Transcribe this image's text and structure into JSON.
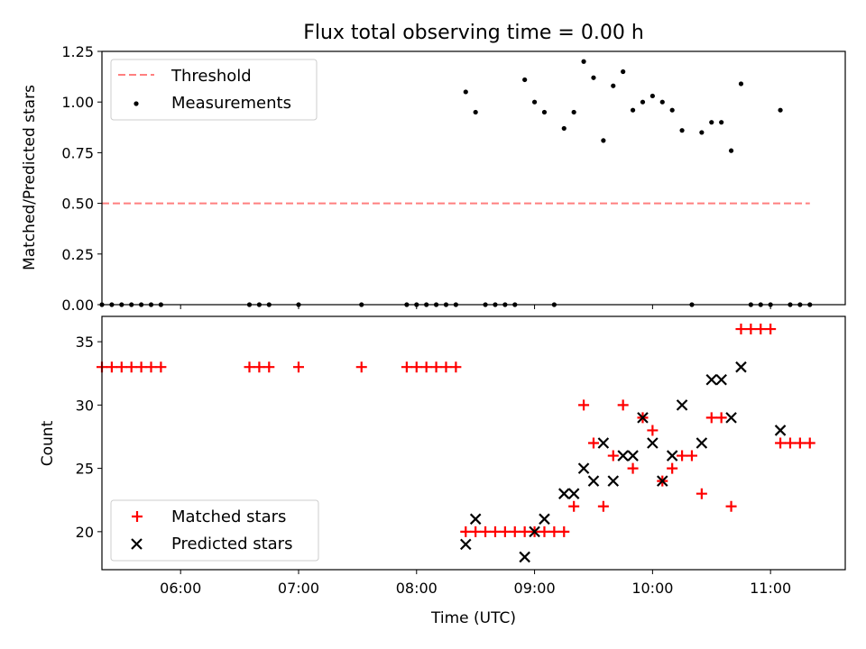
{
  "chart_data": [
    {
      "type": "scatter",
      "title": "Flux total observing time = 0.00 h",
      "xlabel": "",
      "ylabel": "Matched/Predicted stars",
      "ylim": [
        0,
        1.25
      ],
      "yticks": [
        "0.00",
        "0.25",
        "0.50",
        "0.75",
        "1.00",
        "1.25"
      ],
      "xticks": [
        "06:00",
        "07:00",
        "08:00",
        "09:00",
        "10:00",
        "11:00"
      ],
      "xlim": [
        "05:20",
        "11:38"
      ],
      "legend_position": "top-left",
      "legend": [
        "Threshold",
        "Measurements"
      ],
      "colors": {
        "threshold": "#ff7f7f",
        "measurements": "#000000"
      },
      "threshold": {
        "name": "Threshold",
        "y": 0.5,
        "x_from": "05:20",
        "x_to": "11:20"
      },
      "series": [
        {
          "name": "Measurements",
          "x": [
            "05:20",
            "05:25",
            "05:30",
            "05:35",
            "05:40",
            "05:45",
            "05:50",
            "06:35",
            "06:40",
            "06:45",
            "07:00",
            "07:32",
            "07:55",
            "08:00",
            "08:05",
            "08:10",
            "08:15",
            "08:20",
            "08:25",
            "08:30",
            "08:35",
            "08:40",
            "08:45",
            "08:50",
            "08:55",
            "09:00",
            "09:05",
            "09:10",
            "09:15",
            "09:20",
            "09:25",
            "09:30",
            "09:35",
            "09:40",
            "09:45",
            "09:50",
            "09:55",
            "10:00",
            "10:05",
            "10:10",
            "10:15",
            "10:20",
            "10:25",
            "10:30",
            "10:35",
            "10:40",
            "10:45",
            "10:50",
            "10:55",
            "11:00",
            "11:05",
            "11:10",
            "11:15",
            "11:20"
          ],
          "y": [
            0,
            0,
            0,
            0,
            0,
            0,
            0,
            0,
            0,
            0,
            0,
            0,
            0,
            0,
            0,
            0,
            0,
            0,
            1.05,
            0.95,
            0,
            0,
            0,
            0,
            1.11,
            1.0,
            0.95,
            0,
            0.87,
            0.95,
            1.2,
            1.12,
            0.81,
            1.08,
            1.15,
            0.96,
            1.0,
            1.03,
            1.0,
            0.96,
            0.86,
            0,
            0.85,
            0.9,
            0.9,
            0.76,
            1.09,
            0,
            0,
            0,
            0.96,
            0,
            0,
            0
          ]
        }
      ]
    },
    {
      "type": "scatter",
      "title": "",
      "xlabel": "Time (UTC)",
      "ylabel": "Count",
      "ylim": [
        17,
        37
      ],
      "yticks": [
        "20",
        "25",
        "30",
        "35"
      ],
      "xticks": [
        "06:00",
        "07:00",
        "08:00",
        "09:00",
        "10:00",
        "11:00"
      ],
      "xlim": [
        "05:20",
        "11:38"
      ],
      "legend_position": "bottom-left",
      "legend": [
        "Matched stars",
        "Predicted stars"
      ],
      "colors": {
        "matched": "#ff0000",
        "predicted": "#000000"
      },
      "series": [
        {
          "name": "Matched stars",
          "marker": "plus",
          "x": [
            "05:20",
            "05:25",
            "05:30",
            "05:35",
            "05:40",
            "05:45",
            "05:50",
            "06:35",
            "06:40",
            "06:45",
            "07:00",
            "07:32",
            "07:55",
            "08:00",
            "08:05",
            "08:10",
            "08:15",
            "08:20",
            "08:25",
            "08:30",
            "08:35",
            "08:40",
            "08:45",
            "08:50",
            "08:55",
            "09:00",
            "09:05",
            "09:10",
            "09:15",
            "09:20",
            "09:25",
            "09:30",
            "09:35",
            "09:40",
            "09:45",
            "09:50",
            "09:55",
            "10:00",
            "10:05",
            "10:10",
            "10:15",
            "10:20",
            "10:25",
            "10:30",
            "10:35",
            "10:40",
            "10:45",
            "10:50",
            "10:55",
            "11:00",
            "11:05",
            "11:10",
            "11:15",
            "11:20"
          ],
          "y": [
            33,
            33,
            33,
            33,
            33,
            33,
            33,
            33,
            33,
            33,
            33,
            33,
            33,
            33,
            33,
            33,
            33,
            33,
            20,
            20,
            20,
            20,
            20,
            20,
            20,
            20,
            20,
            20,
            20,
            22,
            30,
            27,
            22,
            26,
            30,
            25,
            29,
            28,
            24,
            25,
            26,
            26,
            23,
            29,
            29,
            22,
            36,
            36,
            36,
            36,
            27,
            27,
            27,
            27
          ]
        },
        {
          "name": "Predicted stars",
          "marker": "x",
          "x": [
            "08:25",
            "08:30",
            "08:55",
            "09:00",
            "09:05",
            "09:15",
            "09:20",
            "09:25",
            "09:30",
            "09:35",
            "09:40",
            "09:45",
            "09:50",
            "09:55",
            "10:00",
            "10:05",
            "10:10",
            "10:15",
            "10:25",
            "10:30",
            "10:35",
            "10:40",
            "10:45",
            "11:05"
          ],
          "y": [
            19,
            21,
            18,
            20,
            21,
            23,
            23,
            25,
            24,
            27,
            24,
            26,
            26,
            29,
            27,
            24,
            26,
            30,
            27,
            32,
            32,
            29,
            33,
            28
          ]
        }
      ]
    }
  ]
}
